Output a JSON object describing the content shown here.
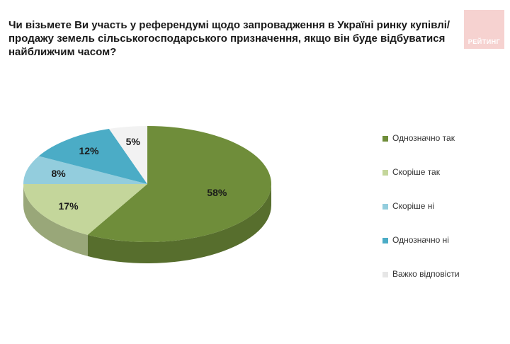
{
  "title": "Чи візьмете Ви участь у референдумі щодо запровадження в Україні ринку купівлі/продажу земель сільськогосподарського призначення, якщо він буде відбуватися найближчим часом?",
  "brand": {
    "label": "РЕЙТИНГ",
    "color": "#f6d2d0"
  },
  "chart_data": {
    "type": "pie",
    "style": "3d",
    "legend_position": "right",
    "slices": [
      {
        "label": "Однозначно так",
        "value": 58,
        "display": "58%",
        "color": "#6f8d3a"
      },
      {
        "label": "Скоріше так",
        "value": 17,
        "display": "17%",
        "color": "#c4d69b"
      },
      {
        "label": "Скоріше ні",
        "value": 8,
        "display": "8%",
        "color": "#93cddd"
      },
      {
        "label": "Однозначно ні",
        "value": 12,
        "display": "12%",
        "color": "#4bacc6"
      },
      {
        "label": "Важко відповісти",
        "value": 5,
        "display": "5%",
        "color": "#f2f2f2"
      }
    ]
  }
}
